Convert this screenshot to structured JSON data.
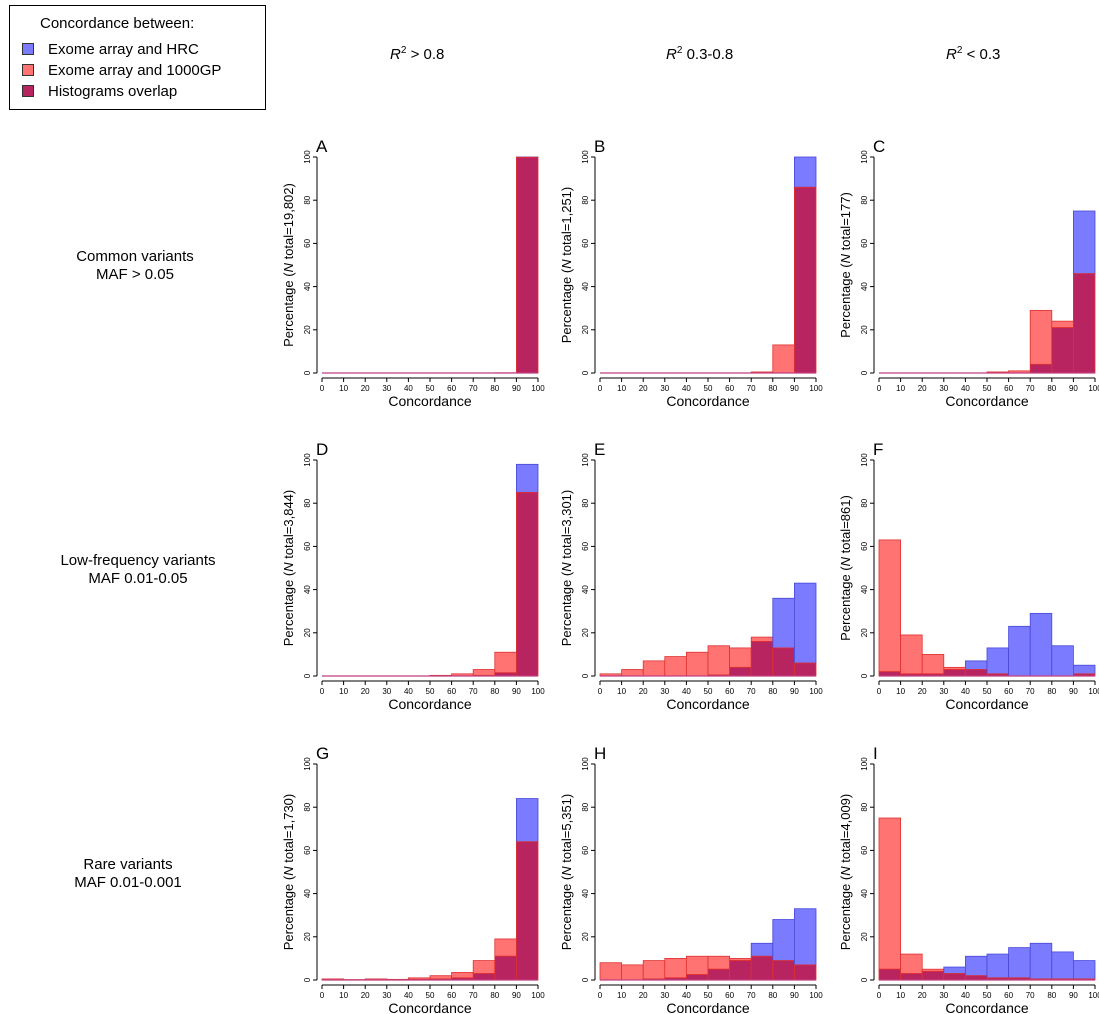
{
  "legend": {
    "title": "Concordance between:",
    "items": [
      {
        "label": "Exome array and HRC",
        "color": "#7b7bff"
      },
      {
        "label": "Exome array and 1000GP",
        "color": "#ff7373"
      },
      {
        "label": "Histograms overlap",
        "color": "#b8245f"
      }
    ]
  },
  "column_headers": [
    {
      "symbol": "R",
      "exp": "2",
      "rest": " > 0.8"
    },
    {
      "symbol": "R",
      "exp": "2",
      "rest": " 0.3-0.8"
    },
    {
      "symbol": "R",
      "exp": "2",
      "rest": " < 0.3"
    }
  ],
  "row_labels": [
    {
      "line1": "Common variants",
      "line2": "MAF > 0.05"
    },
    {
      "line1": "Low-frequency variants",
      "line2": "MAF 0.01-0.05"
    },
    {
      "line1": "Rare variants",
      "line2": "MAF 0.01-0.001"
    }
  ],
  "colors": {
    "hrc": "#7b7bff",
    "g1000": "#ff7373",
    "overlap": "#b8245f",
    "hrc_edge": "#4848d8",
    "g1000_edge": "#e03030"
  },
  "chart_data": [
    {
      "panel": "A",
      "type": "bar",
      "xlabel": "Concordance",
      "ylabel_prefix": "Percentage (",
      "ylabel_n": "N",
      "ylabel_suffix": " total=19,802)",
      "ylim": [
        0,
        100
      ],
      "x_ticks": [
        0,
        10,
        20,
        30,
        40,
        50,
        60,
        70,
        80,
        90,
        100
      ],
      "y_ticks": [
        0,
        20,
        40,
        60,
        80,
        100
      ],
      "bins": [
        0,
        10,
        20,
        30,
        40,
        50,
        60,
        70,
        80,
        90
      ],
      "series": [
        {
          "name": "Exome array and HRC",
          "values": [
            0,
            0,
            0,
            0,
            0,
            0,
            0,
            0,
            0,
            100
          ]
        },
        {
          "name": "Exome array and 1000GP",
          "values": [
            0,
            0,
            0,
            0,
            0,
            0,
            0,
            0,
            0.1,
            99.9
          ]
        }
      ]
    },
    {
      "panel": "B",
      "type": "bar",
      "xlabel": "Concordance",
      "ylabel_prefix": "Percentage (",
      "ylabel_n": "N",
      "ylabel_suffix": " total=1,251)",
      "ylim": [
        0,
        100
      ],
      "x_ticks": [
        0,
        10,
        20,
        30,
        40,
        50,
        60,
        70,
        80,
        90,
        100
      ],
      "y_ticks": [
        0,
        20,
        40,
        60,
        80,
        100
      ],
      "bins": [
        0,
        10,
        20,
        30,
        40,
        50,
        60,
        70,
        80,
        90
      ],
      "series": [
        {
          "name": "Exome array and HRC",
          "values": [
            0,
            0,
            0,
            0,
            0,
            0,
            0,
            0,
            0,
            100
          ]
        },
        {
          "name": "Exome array and 1000GP",
          "values": [
            0,
            0,
            0,
            0,
            0,
            0,
            0,
            0.5,
            13,
            86
          ]
        }
      ]
    },
    {
      "panel": "C",
      "type": "bar",
      "xlabel": "Concordance",
      "ylabel_prefix": "Percentage (",
      "ylabel_n": "N",
      "ylabel_suffix": " total=177)",
      "ylim": [
        0,
        100
      ],
      "x_ticks": [
        0,
        10,
        20,
        30,
        40,
        50,
        60,
        70,
        80,
        90,
        100
      ],
      "y_ticks": [
        0,
        20,
        40,
        60,
        80,
        100
      ],
      "bins": [
        0,
        10,
        20,
        30,
        40,
        50,
        60,
        70,
        80,
        90
      ],
      "series": [
        {
          "name": "Exome array and HRC",
          "values": [
            0,
            0,
            0,
            0,
            0,
            0,
            0,
            4,
            21,
            75
          ]
        },
        {
          "name": "Exome array and 1000GP",
          "values": [
            0,
            0,
            0,
            0,
            0,
            0.5,
            1,
            29,
            24,
            46
          ]
        }
      ]
    },
    {
      "panel": "D",
      "type": "bar",
      "xlabel": "Concordance",
      "ylabel_prefix": "Percentage (",
      "ylabel_n": "N",
      "ylabel_suffix": " total=3,844)",
      "ylim": [
        0,
        100
      ],
      "x_ticks": [
        0,
        10,
        20,
        30,
        40,
        50,
        60,
        70,
        80,
        90,
        100
      ],
      "y_ticks": [
        0,
        20,
        40,
        60,
        80,
        100
      ],
      "bins": [
        0,
        10,
        20,
        30,
        40,
        50,
        60,
        70,
        80,
        90
      ],
      "series": [
        {
          "name": "Exome array and HRC",
          "values": [
            0,
            0,
            0,
            0,
            0,
            0,
            0,
            0.3,
            1.5,
            98
          ]
        },
        {
          "name": "Exome array and 1000GP",
          "values": [
            0,
            0,
            0,
            0,
            0,
            0.3,
            1,
            3,
            11,
            85
          ]
        }
      ]
    },
    {
      "panel": "E",
      "type": "bar",
      "xlabel": "Concordance",
      "ylabel_prefix": "Percentage (",
      "ylabel_n": "N",
      "ylabel_suffix": " total=3,301)",
      "ylim": [
        0,
        100
      ],
      "x_ticks": [
        0,
        10,
        20,
        30,
        40,
        50,
        60,
        70,
        80,
        90,
        100
      ],
      "y_ticks": [
        0,
        20,
        40,
        60,
        80,
        100
      ],
      "bins": [
        0,
        10,
        20,
        30,
        40,
        50,
        60,
        70,
        80,
        90
      ],
      "series": [
        {
          "name": "Exome array and HRC",
          "values": [
            0,
            0,
            0,
            0,
            0,
            0.5,
            4,
            16,
            36,
            43
          ]
        },
        {
          "name": "Exome array and 1000GP",
          "values": [
            1,
            3,
            7,
            9,
            11,
            14,
            13,
            18,
            13,
            6
          ]
        }
      ]
    },
    {
      "panel": "F",
      "type": "bar",
      "xlabel": "Concordance",
      "ylabel_prefix": "Percentage (",
      "ylabel_n": "N",
      "ylabel_suffix": " total=861)",
      "ylim": [
        0,
        100
      ],
      "x_ticks": [
        0,
        10,
        20,
        30,
        40,
        50,
        60,
        70,
        80,
        90,
        100
      ],
      "y_ticks": [
        0,
        20,
        40,
        60,
        80,
        100
      ],
      "bins": [
        0,
        10,
        20,
        30,
        40,
        50,
        60,
        70,
        80,
        90
      ],
      "series": [
        {
          "name": "Exome array and HRC",
          "values": [
            2,
            1,
            1,
            3,
            7,
            13,
            23,
            29,
            14,
            5
          ]
        },
        {
          "name": "Exome array and 1000GP",
          "values": [
            63,
            19,
            10,
            4,
            3,
            1,
            0,
            0,
            0,
            1
          ]
        }
      ]
    },
    {
      "panel": "G",
      "type": "bar",
      "xlabel": "Concordance",
      "ylabel_prefix": "Percentage (",
      "ylabel_n": "N",
      "ylabel_suffix": " total=1,730)",
      "ylim": [
        0,
        100
      ],
      "x_ticks": [
        0,
        10,
        20,
        30,
        40,
        50,
        60,
        70,
        80,
        90,
        100
      ],
      "y_ticks": [
        0,
        20,
        40,
        60,
        80,
        100
      ],
      "bins": [
        0,
        10,
        20,
        30,
        40,
        50,
        60,
        70,
        80,
        90
      ],
      "series": [
        {
          "name": "Exome array and HRC",
          "values": [
            0,
            0,
            0,
            0,
            0.3,
            0.5,
            1,
            3,
            11,
            84
          ]
        },
        {
          "name": "Exome array and 1000GP",
          "values": [
            0.5,
            0.2,
            0.5,
            0.3,
            1,
            2,
            3.5,
            9,
            19,
            64
          ]
        }
      ]
    },
    {
      "panel": "H",
      "type": "bar",
      "xlabel": "Concordance",
      "ylabel_prefix": "Percentage (",
      "ylabel_n": "N",
      "ylabel_suffix": " total=5,351)",
      "ylim": [
        0,
        100
      ],
      "x_ticks": [
        0,
        10,
        20,
        30,
        40,
        50,
        60,
        70,
        80,
        90,
        100
      ],
      "y_ticks": [
        0,
        20,
        40,
        60,
        80,
        100
      ],
      "bins": [
        0,
        10,
        20,
        30,
        40,
        50,
        60,
        70,
        80,
        90
      ],
      "series": [
        {
          "name": "Exome array and HRC",
          "values": [
            0,
            0,
            0.5,
            1,
            2.5,
            5,
            9,
            17,
            28,
            33
          ]
        },
        {
          "name": "Exome array and 1000GP",
          "values": [
            8,
            7,
            9,
            10,
            11,
            11,
            10,
            11,
            9,
            7
          ]
        }
      ]
    },
    {
      "panel": "I",
      "type": "bar",
      "xlabel": "Concordance",
      "ylabel_prefix": "Percentage (",
      "ylabel_n": "N",
      "ylabel_suffix": " total=4,009)",
      "ylim": [
        0,
        100
      ],
      "x_ticks": [
        0,
        10,
        20,
        30,
        40,
        50,
        60,
        70,
        80,
        90,
        100
      ],
      "y_ticks": [
        0,
        20,
        40,
        60,
        80,
        100
      ],
      "bins": [
        0,
        10,
        20,
        30,
        40,
        50,
        60,
        70,
        80,
        90
      ],
      "series": [
        {
          "name": "Exome array and HRC",
          "values": [
            5,
            3,
            4,
            6,
            11,
            12,
            15,
            17,
            13,
            9
          ]
        },
        {
          "name": "Exome array and 1000GP",
          "values": [
            75,
            12,
            5,
            3,
            2,
            1,
            1,
            0.5,
            0.5,
            0.5
          ]
        }
      ]
    }
  ]
}
